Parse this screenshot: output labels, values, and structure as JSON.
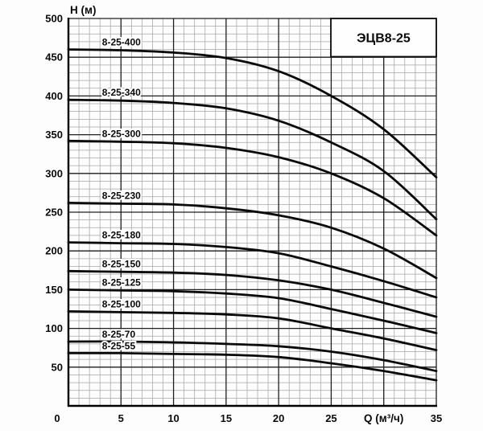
{
  "figure": {
    "title_box_label": "ЭЦВ8-25",
    "y_axis_title": "H (м)",
    "x_axis_title": "Q (м³/ч)",
    "x_tick_labels": [
      "0",
      "5",
      "10",
      "15",
      "20",
      "25",
      "Q (м³/ч)",
      "35"
    ],
    "y_tick_labels": [
      "50",
      "100",
      "150",
      "200",
      "250",
      "300",
      "350",
      "400",
      "450",
      "500"
    ]
  },
  "colors": {
    "background": "#fdfdfd",
    "grid_minor": "#a6a6a6",
    "grid_major": "#1f1f1f",
    "axis": "#000000",
    "curve": "#0a0a0a",
    "text": "#0a0a0a"
  },
  "chart_data": {
    "type": "line",
    "title": "ЭЦВ8-25",
    "xlabel": "Q (м³/ч)",
    "ylabel": "H (м)",
    "xlim": [
      0,
      35
    ],
    "ylim": [
      0,
      500
    ],
    "x_major_step": 5,
    "x_minor_step": 1,
    "y_major_step": 50,
    "y_minor_step": 10,
    "x_tick_values": [
      0,
      5,
      10,
      15,
      20,
      25,
      30,
      35
    ],
    "y_tick_values": [
      50,
      100,
      150,
      200,
      250,
      300,
      350,
      400,
      450,
      500
    ],
    "grid": true,
    "legend": "inline-curve-labels",
    "x": [
      0,
      5,
      10,
      15,
      20,
      25,
      30,
      35
    ],
    "series": [
      {
        "name": "8-25-400",
        "values": [
          460,
          459,
          456,
          449,
          432,
          400,
          357,
          295
        ]
      },
      {
        "name": "8-25-340",
        "values": [
          395,
          394,
          391,
          384,
          368,
          340,
          303,
          241
        ]
      },
      {
        "name": "8-25-300",
        "values": [
          342,
          341,
          339,
          333,
          321,
          300,
          268,
          220
        ]
      },
      {
        "name": "8-25-230",
        "values": [
          262,
          261,
          260,
          255,
          246,
          230,
          203,
          165
        ]
      },
      {
        "name": "8-25-180",
        "values": [
          211,
          210,
          209,
          205,
          197,
          180,
          161,
          140
        ]
      },
      {
        "name": "8-25-150",
        "values": [
          174,
          173,
          172,
          169,
          162,
          150,
          133,
          115
        ]
      },
      {
        "name": "8-25-125",
        "values": [
          150,
          149,
          148,
          145,
          139,
          125,
          110,
          94
        ]
      },
      {
        "name": "8-25-100",
        "values": [
          122,
          121,
          120,
          118,
          113,
          100,
          87,
          72
        ]
      },
      {
        "name": "8-25-70",
        "values": [
          83,
          83,
          82,
          80,
          77,
          70,
          59,
          45
        ]
      },
      {
        "name": "8-25-55",
        "values": [
          68,
          68,
          67,
          66,
          63,
          55,
          45,
          33
        ]
      }
    ]
  }
}
